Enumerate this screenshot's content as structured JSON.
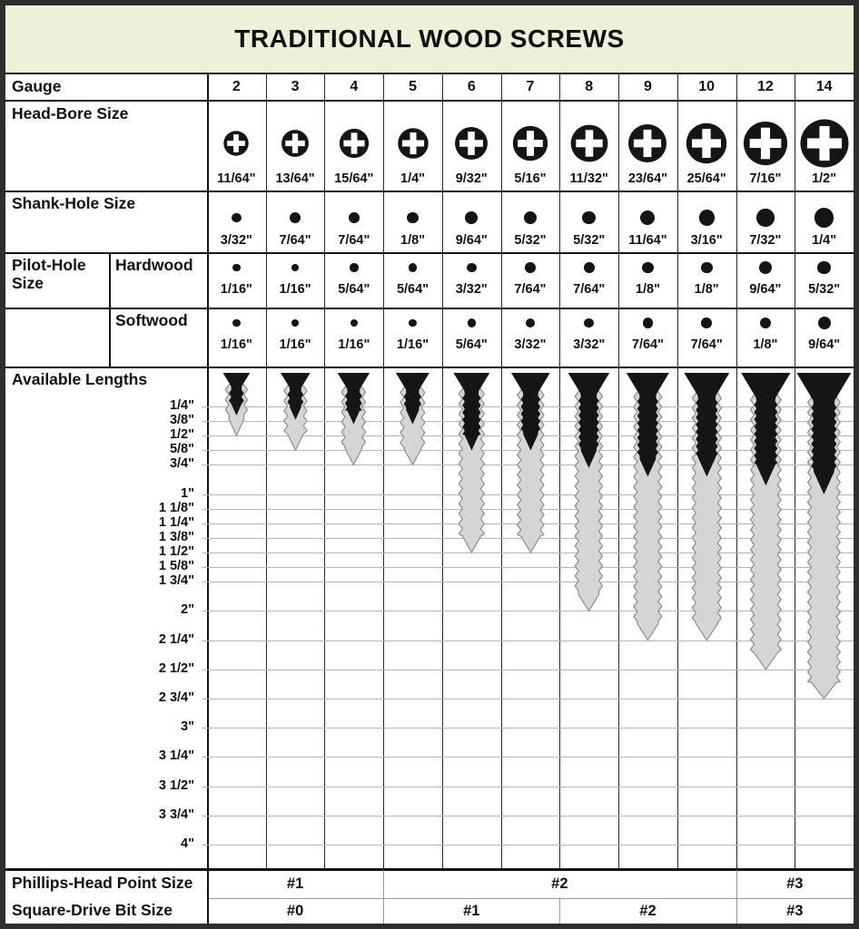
{
  "title": "TRADITIONAL WOOD SCREWS",
  "rows": {
    "gauge_label": "Gauge",
    "head_bore_label": "Head-Bore Size",
    "shank_label": "Shank-Hole Size",
    "pilot_label": "Pilot-Hole Size",
    "hardwood_label": "Hardwood",
    "softwood_label": "Softwood",
    "lengths_label": "Available Lengths",
    "phillips_label": "Phillips-Head Point Size",
    "square_label": "Square-Drive Bit Size"
  },
  "chart_data": {
    "type": "table",
    "title": "TRADITIONAL WOOD SCREWS",
    "gauges": [
      "2",
      "3",
      "4",
      "5",
      "6",
      "7",
      "8",
      "9",
      "10",
      "12",
      "14"
    ],
    "head_bore": [
      "11/64\"",
      "13/64\"",
      "15/64\"",
      "1/4\"",
      "9/32\"",
      "5/16\"",
      "11/32\"",
      "23/64\"",
      "25/64\"",
      "7/16\"",
      "1/2\""
    ],
    "shank_hole": [
      "3/32\"",
      "7/64\"",
      "7/64\"",
      "1/8\"",
      "9/64\"",
      "5/32\"",
      "5/32\"",
      "11/64\"",
      "3/16\"",
      "7/32\"",
      "1/4\""
    ],
    "pilot_hardwood": [
      "1/16\"",
      "1/16\"",
      "5/64\"",
      "5/64\"",
      "3/32\"",
      "7/64\"",
      "7/64\"",
      "1/8\"",
      "1/8\"",
      "9/64\"",
      "5/32\""
    ],
    "pilot_softwood": [
      "1/16\"",
      "1/16\"",
      "1/16\"",
      "1/16\"",
      "5/64\"",
      "3/32\"",
      "3/32\"",
      "7/64\"",
      "7/64\"",
      "1/8\"",
      "9/64\""
    ],
    "length_ticks": [
      "1/4\"",
      "3/8\"",
      "1/2\"",
      "5/8\"",
      "3/4\"",
      "1\"",
      "1 1/8\"",
      "1 1/4\"",
      "1 3/8\"",
      "1 1/2\"",
      "1 5/8\"",
      "1 3/4\"",
      "2\"",
      "2 1/4\"",
      "2 1/2\"",
      "2 3/4\"",
      "3\"",
      "3 1/4\"",
      "3 1/2\"",
      "3 3/4\"",
      "4\""
    ],
    "length_tick_in": [
      0.25,
      0.375,
      0.5,
      0.625,
      0.75,
      1,
      1.125,
      1.25,
      1.375,
      1.5,
      1.625,
      1.75,
      2,
      2.25,
      2.5,
      2.75,
      3,
      3.25,
      3.5,
      3.75,
      4
    ],
    "max_length_in": [
      0.5,
      0.625,
      0.75,
      0.75,
      1.5,
      1.5,
      2,
      2.25,
      2.25,
      2.5,
      2.75
    ],
    "phillips_spans": [
      {
        "label": "#1",
        "cols": 3
      },
      {
        "label": "#2",
        "cols": 6
      },
      {
        "label": "#3",
        "cols": 2
      }
    ],
    "square_spans": [
      {
        "label": "#0",
        "cols": 3
      },
      {
        "label": "#1",
        "cols": 3
      },
      {
        "label": "#2",
        "cols": 3
      },
      {
        "label": "#3",
        "cols": 2
      }
    ],
    "colors": {
      "band": "#eef0da",
      "screw_black": "#151515",
      "thread_fill": "#d5d5d5",
      "thread_stroke": "#8e8e8e",
      "grid_light": "#b5b5b5",
      "divider_light": "#9a9a9a",
      "line_dark": "#141414"
    }
  }
}
